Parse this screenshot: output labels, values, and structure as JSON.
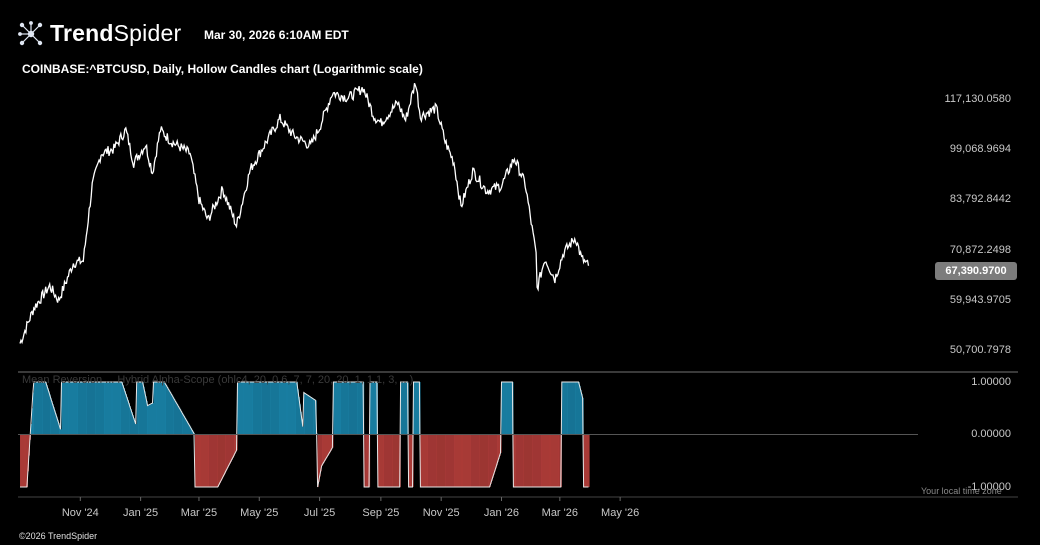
{
  "header": {
    "brand_part1": "Trend",
    "brand_part2": "Spider",
    "timestamp": "Mar 30, 2026 6:10AM EDT",
    "chart_title": "COINBASE:^BTCUSD, Daily, Hollow Candles chart (Logarithmic scale)"
  },
  "indicator": {
    "label": "Mean Reversion ... Hybrid Alpha-Scope (ohlc4, 20, 0.6, 7, 7, 20, 20, 1, 1.1, 3, ...)",
    "timezone_note": "Your local time zone"
  },
  "footer": {
    "copyright": "©2026 TrendSpider"
  },
  "colors": {
    "background": "#000000",
    "price_line": "#ffffff",
    "osc_positive": "#1c8fb8",
    "osc_negative": "#c2433f",
    "last_price_badge": "#7c7c7c"
  },
  "chart_data": [
    {
      "type": "line",
      "title": "COINBASE:^BTCUSD, Daily, Hollow Candles chart (Logarithmic scale)",
      "scale": "log",
      "last_price": "67,390.9700",
      "y_ticks": [
        "117,130.0580",
        "99,068.9694",
        "83,792.8442",
        "70,872.2498",
        "59,943.9705",
        "50,700.7978"
      ],
      "y_tick_values": [
        117130.058,
        99068.9694,
        83792.8442,
        70872.2498,
        59943.9705,
        50700.7978
      ],
      "x_ticks": [
        "Nov '24",
        "Jan '25",
        "Mar '25",
        "May '25",
        "Jul '25",
        "Sep '25",
        "Nov '25",
        "Jan '26",
        "Mar '26",
        "May '26"
      ],
      "x_tick_dates": [
        "2024-11-01",
        "2025-01-01",
        "2025-03-01",
        "2025-05-01",
        "2025-07-01",
        "2025-09-01",
        "2025-11-01",
        "2026-01-01",
        "2026-03-01",
        "2026-05-01"
      ],
      "series": [
        {
          "points": [
            [
              "2024-09-01",
              52000
            ],
            [
              "2024-09-15",
              58500
            ],
            [
              "2024-10-01",
              63000
            ],
            [
              "2024-10-10",
              60000
            ],
            [
              "2024-10-25",
              68000
            ],
            [
              "2024-11-04",
              68500
            ],
            [
              "2024-11-13",
              88000
            ],
            [
              "2024-11-22",
              98000
            ],
            [
              "2024-12-05",
              99500
            ],
            [
              "2024-12-17",
              106000
            ],
            [
              "2024-12-25",
              95000
            ],
            [
              "2025-01-06",
              101000
            ],
            [
              "2025-01-13",
              92000
            ],
            [
              "2025-01-21",
              106000
            ],
            [
              "2025-02-01",
              102000
            ],
            [
              "2025-02-20",
              98000
            ],
            [
              "2025-03-01",
              84000
            ],
            [
              "2025-03-10",
              78500
            ],
            [
              "2025-03-25",
              87000
            ],
            [
              "2025-04-08",
              77000
            ],
            [
              "2025-04-22",
              93000
            ],
            [
              "2025-05-10",
              103000
            ],
            [
              "2025-05-22",
              110000
            ],
            [
              "2025-06-05",
              104000
            ],
            [
              "2025-06-22",
              100500
            ],
            [
              "2025-07-01",
              107000
            ],
            [
              "2025-07-14",
              120000
            ],
            [
              "2025-07-30",
              118000
            ],
            [
              "2025-08-14",
              122000
            ],
            [
              "2025-08-25",
              111000
            ],
            [
              "2025-09-01",
              108500
            ],
            [
              "2025-09-18",
              116000
            ],
            [
              "2025-09-26",
              109500
            ],
            [
              "2025-10-06",
              124500
            ],
            [
              "2025-10-11",
              111000
            ],
            [
              "2025-10-27",
              114000
            ],
            [
              "2025-11-05",
              102000
            ],
            [
              "2025-11-14",
              95000
            ],
            [
              "2025-11-21",
              82000
            ],
            [
              "2025-12-03",
              92500
            ],
            [
              "2025-12-17",
              86500
            ],
            [
              "2026-01-01",
              88000
            ],
            [
              "2026-01-14",
              96500
            ],
            [
              "2026-01-25",
              88500
            ],
            [
              "2026-02-05",
              70000
            ],
            [
              "2026-02-06",
              62500
            ],
            [
              "2026-02-14",
              69000
            ],
            [
              "2026-02-24",
              64500
            ],
            [
              "2026-03-05",
              70500
            ],
            [
              "2026-03-17",
              74000
            ],
            [
              "2026-03-23",
              69000
            ],
            [
              "2026-03-30",
              67391
            ]
          ]
        }
      ]
    },
    {
      "type": "area",
      "title": "Mean Reversion ... Hybrid Alpha-Scope (ohlc4, 20, 0.6, 7, 7, 20, 20, 1, 1.1, 3, ...)",
      "y_ticks": [
        "1.00000",
        "0.00000",
        "-1.00000"
      ],
      "y_range": [
        -1,
        1
      ],
      "series": [
        {
          "points": [
            [
              "2024-09-01",
              -1
            ],
            [
              "2024-09-08",
              -1
            ],
            [
              "2024-09-14",
              0.8
            ],
            [
              "2024-09-15",
              1
            ],
            [
              "2024-09-27",
              1
            ],
            [
              "2024-10-12",
              0.1
            ],
            [
              "2024-10-13",
              1
            ],
            [
              "2024-12-13",
              1
            ],
            [
              "2024-12-27",
              0.2
            ],
            [
              "2024-12-28",
              1
            ],
            [
              "2025-01-03",
              1
            ],
            [
              "2025-01-08",
              0.55
            ],
            [
              "2025-01-13",
              0.6
            ],
            [
              "2025-01-14",
              1
            ],
            [
              "2025-01-25",
              1
            ],
            [
              "2025-02-24",
              0.02
            ],
            [
              "2025-02-25",
              -1
            ],
            [
              "2025-03-20",
              -1
            ],
            [
              "2025-04-08",
              -0.3
            ],
            [
              "2025-04-09",
              1
            ],
            [
              "2025-06-08",
              1
            ],
            [
              "2025-06-14",
              0.15
            ],
            [
              "2025-06-15",
              0.8
            ],
            [
              "2025-06-27",
              0.65
            ],
            [
              "2025-06-28",
              0.02
            ],
            [
              "2025-06-29",
              -1
            ],
            [
              "2025-07-03",
              -0.6
            ],
            [
              "2025-07-14",
              -0.25
            ],
            [
              "2025-07-15",
              1
            ],
            [
              "2025-08-14",
              1
            ],
            [
              "2025-08-15",
              -1
            ],
            [
              "2025-08-20",
              -1
            ],
            [
              "2025-08-21",
              1
            ],
            [
              "2025-08-28",
              1
            ],
            [
              "2025-08-29",
              -1
            ],
            [
              "2025-09-20",
              -1
            ],
            [
              "2025-09-21",
              1
            ],
            [
              "2025-09-28",
              1
            ],
            [
              "2025-09-29",
              -1
            ],
            [
              "2025-10-03",
              -1
            ],
            [
              "2025-10-04",
              1
            ],
            [
              "2025-10-10",
              1
            ],
            [
              "2025-10-11",
              -1
            ],
            [
              "2025-12-20",
              -1
            ],
            [
              "2025-12-31",
              -0.35
            ],
            [
              "2026-01-01",
              1
            ],
            [
              "2026-01-12",
              1
            ],
            [
              "2026-01-13",
              -1
            ],
            [
              "2026-03-02",
              -1
            ],
            [
              "2026-03-03",
              1
            ],
            [
              "2026-03-20",
              1
            ],
            [
              "2026-03-24",
              0.7
            ],
            [
              "2026-03-25",
              -1
            ],
            [
              "2026-03-30",
              -1
            ]
          ]
        }
      ]
    }
  ]
}
